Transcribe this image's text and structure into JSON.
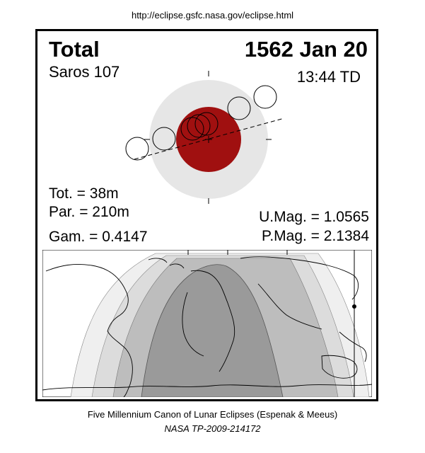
{
  "header": {
    "url": "http://eclipse.gsfc.nasa.gov/eclipse.html"
  },
  "eclipse": {
    "type": "Total",
    "saros": "Saros 107",
    "date": "1562 Jan 20",
    "time": "13:44 TD",
    "tot": "Tot. =  38m",
    "par": "Par. = 210m",
    "gamma": "Gam. = 0.4147",
    "umag": "U.Mag. = 1.0565",
    "pmag": "P.Mag. = 2.1384"
  },
  "colors": {
    "penumbra": "#e6e6e6",
    "umbra": "#a01010",
    "map_dark": "#9a9a9a",
    "map_mid": "#bdbdbd",
    "map_light": "#dcdcdc",
    "map_faint": "#efefef"
  },
  "footer": {
    "line1": "Five Millennium Canon of Lunar Eclipses (Espenak & Meeus)",
    "line2": "NASA TP-2009-214172"
  }
}
